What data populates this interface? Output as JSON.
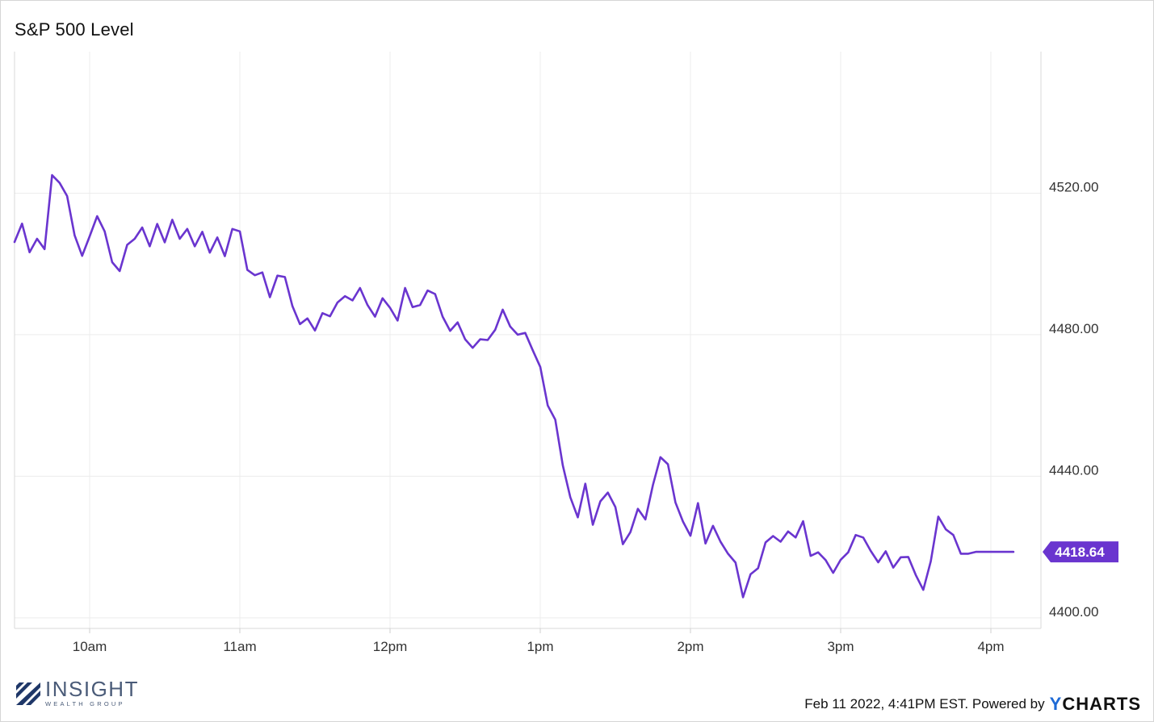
{
  "chart_data": {
    "type": "line",
    "title": "S&P 500 Level",
    "x_ticks": [
      "10am",
      "11am",
      "12pm",
      "1pm",
      "2pm",
      "3pm",
      "4pm"
    ],
    "y_ticks": [
      "4520.00",
      "4480.00",
      "4440.00",
      "4400.00"
    ],
    "ylim": [
      4397,
      4560
    ],
    "grid": true,
    "last_value_label": "4418.64",
    "series": [
      {
        "color": "#6a35cf",
        "x": [
          "9:30",
          "9:33",
          "9:36",
          "9:39",
          "9:42",
          "9:45",
          "9:48",
          "9:51",
          "9:54",
          "9:57",
          "10:00",
          "10:03",
          "10:06",
          "10:09",
          "10:12",
          "10:15",
          "10:18",
          "10:21",
          "10:24",
          "10:27",
          "10:30",
          "10:33",
          "10:36",
          "10:39",
          "10:42",
          "10:45",
          "10:48",
          "10:51",
          "10:54",
          "10:57",
          "11:00",
          "11:03",
          "11:06",
          "11:09",
          "11:12",
          "11:15",
          "11:18",
          "11:21",
          "11:24",
          "11:27",
          "11:30",
          "11:33",
          "11:36",
          "11:39",
          "11:42",
          "11:45",
          "11:48",
          "11:51",
          "11:54",
          "11:57",
          "12:00",
          "12:03",
          "12:06",
          "12:09",
          "12:12",
          "12:15",
          "12:18",
          "12:21",
          "12:24",
          "12:27",
          "12:30",
          "12:33",
          "12:36",
          "12:39",
          "12:42",
          "12:45",
          "12:48",
          "12:51",
          "12:54",
          "12:57",
          "13:00",
          "13:03",
          "13:06",
          "13:09",
          "13:12",
          "13:15",
          "13:18",
          "13:21",
          "13:24",
          "13:27",
          "13:30",
          "13:33",
          "13:36",
          "13:39",
          "13:42",
          "13:45",
          "13:48",
          "13:51",
          "13:54",
          "13:57",
          "14:00",
          "14:03",
          "14:06",
          "14:09",
          "14:12",
          "14:15",
          "14:18",
          "14:21",
          "14:24",
          "14:27",
          "14:30",
          "14:33",
          "14:36",
          "14:39",
          "14:42",
          "14:45",
          "14:48",
          "14:51",
          "14:54",
          "14:57",
          "15:00",
          "15:03",
          "15:06",
          "15:09",
          "15:12",
          "15:15",
          "15:18",
          "15:21",
          "15:24",
          "15:27",
          "15:30",
          "15:33",
          "15:36",
          "15:39",
          "15:42",
          "15:45",
          "15:48",
          "15:51",
          "15:54",
          "15:57",
          "16:00",
          "16:03",
          "16:06",
          "16:09"
        ],
        "values": [
          4506.2,
          4511.4,
          4503.3,
          4507.1,
          4504.2,
          4525.1,
          4522.9,
          4519.2,
          4508.1,
          4502.3,
          4507.8,
          4513.5,
          4509.2,
          4500.5,
          4498.0,
          4505.4,
          4507.1,
          4510.3,
          4505.0,
          4511.3,
          4506.1,
          4512.5,
          4507.1,
          4509.9,
          4505.0,
          4509.1,
          4503.2,
          4507.5,
          4502.2,
          4509.9,
          4509.2,
          4498.3,
          4496.8,
          4497.6,
          4490.6,
          4496.7,
          4496.3,
          4488.1,
          4483.0,
          4484.6,
          4481.2,
          4486.1,
          4485.2,
          4489.1,
          4490.9,
          4489.7,
          4493.2,
          4488.4,
          4485.1,
          4490.3,
          4487.6,
          4484.0,
          4493.2,
          4487.8,
          4488.4,
          4492.5,
          4491.5,
          4485.1,
          4481.1,
          4483.5,
          4478.7,
          4476.3,
          4478.7,
          4478.5,
          4481.4,
          4487.1,
          4482.3,
          4480.0,
          4480.5,
          4475.6,
          4470.9,
          4460.0,
          4456.0,
          4443.1,
          4434.1,
          4428.4,
          4437.9,
          4426.3,
          4432.9,
          4435.4,
          4431.3,
          4420.8,
          4424.2,
          4430.8,
          4427.8,
          4437.5,
          4445.4,
          4443.4,
          4432.6,
          4427.2,
          4423.2,
          4432.4,
          4421.0,
          4426.0,
          4421.5,
          4418.1,
          4415.6,
          4405.8,
          4412.3,
          4414.0,
          4421.3,
          4423.1,
          4421.5,
          4424.4,
          4422.7,
          4427.3,
          4417.5,
          4418.5,
          4416.3,
          4412.7,
          4416.4,
          4418.5,
          4423.4,
          4422.7,
          4418.9,
          4415.7,
          4418.8,
          4414.2,
          4417.1,
          4417.2,
          4412.1,
          4407.9,
          4416.0,
          4428.6,
          4425.0,
          4423.4,
          4418.1,
          4418.1,
          4418.64,
          4418.64,
          4418.64,
          4418.64,
          4418.64,
          4418.64
        ]
      }
    ]
  },
  "footer": {
    "brand_main": "INSIGHT",
    "brand_sub": "WEALTH GROUP",
    "timestamp": "Feb 11 2022, 4:41PM EST. Powered by",
    "powered_brand": "YCHARTS"
  }
}
